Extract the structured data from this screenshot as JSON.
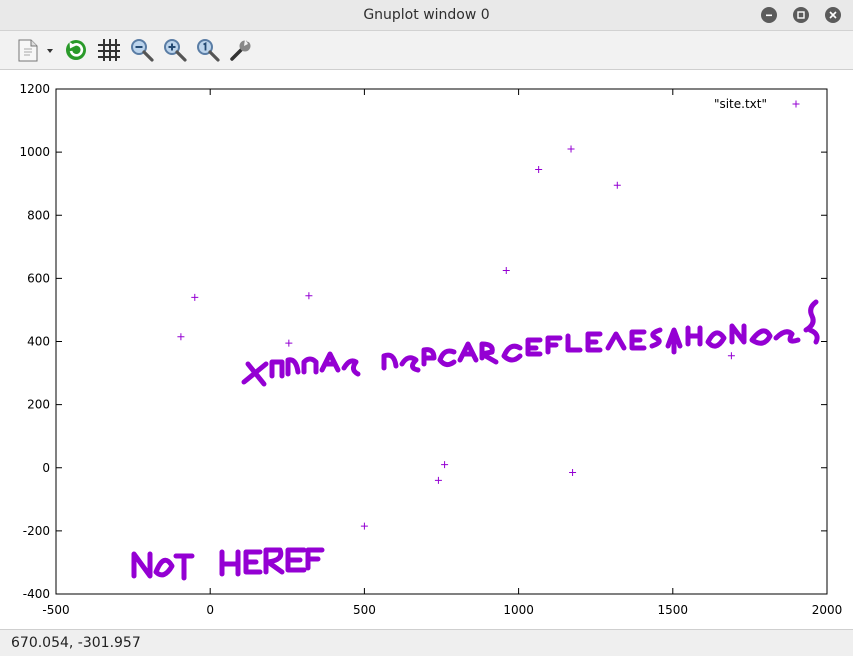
{
  "window": {
    "title": "Gnuplot window 0"
  },
  "toolbar": {
    "items": [
      "export-icon",
      "replot-icon",
      "grid-icon",
      "zoom-out-icon",
      "zoom-in-icon",
      "zoom-reset-icon",
      "settings-icon"
    ]
  },
  "status": {
    "coords": "670.054, -301.957"
  },
  "colors": {
    "series": "#9400d3",
    "accent_replot": "#2a9a2a"
  },
  "chart_data": {
    "type": "scatter",
    "title": "",
    "xlabel": "",
    "ylabel": "",
    "xlim": [
      -500,
      2000
    ],
    "ylim": [
      -400,
      1200
    ],
    "xticks": [
      -500,
      0,
      500,
      1000,
      1500,
      2000
    ],
    "yticks": [
      -400,
      -200,
      0,
      200,
      400,
      600,
      800,
      1000,
      1200
    ],
    "grid": false,
    "legend": "top-right",
    "series": [
      {
        "name": "\"site.txt\"",
        "marker": "+",
        "points": [
          [
            -95,
            415
          ],
          [
            -50,
            540
          ],
          [
            255,
            395
          ],
          [
            320,
            545
          ],
          [
            960,
            625
          ],
          [
            1065,
            945
          ],
          [
            1170,
            1010
          ],
          [
            1320,
            895
          ],
          [
            1690,
            355
          ],
          [
            760,
            10
          ],
          [
            740,
            -40
          ],
          [
            1175,
            -15
          ],
          [
            500,
            -185
          ]
        ]
      }
    ],
    "annotations": [
      {
        "text": "XMUCAS RECOVER THE FLAG",
        "note": "scatter points dense enough to form mirrored lettering"
      },
      {
        "text": "NOT HERE",
        "note": "scatter points dense enough to form lettering"
      }
    ]
  }
}
